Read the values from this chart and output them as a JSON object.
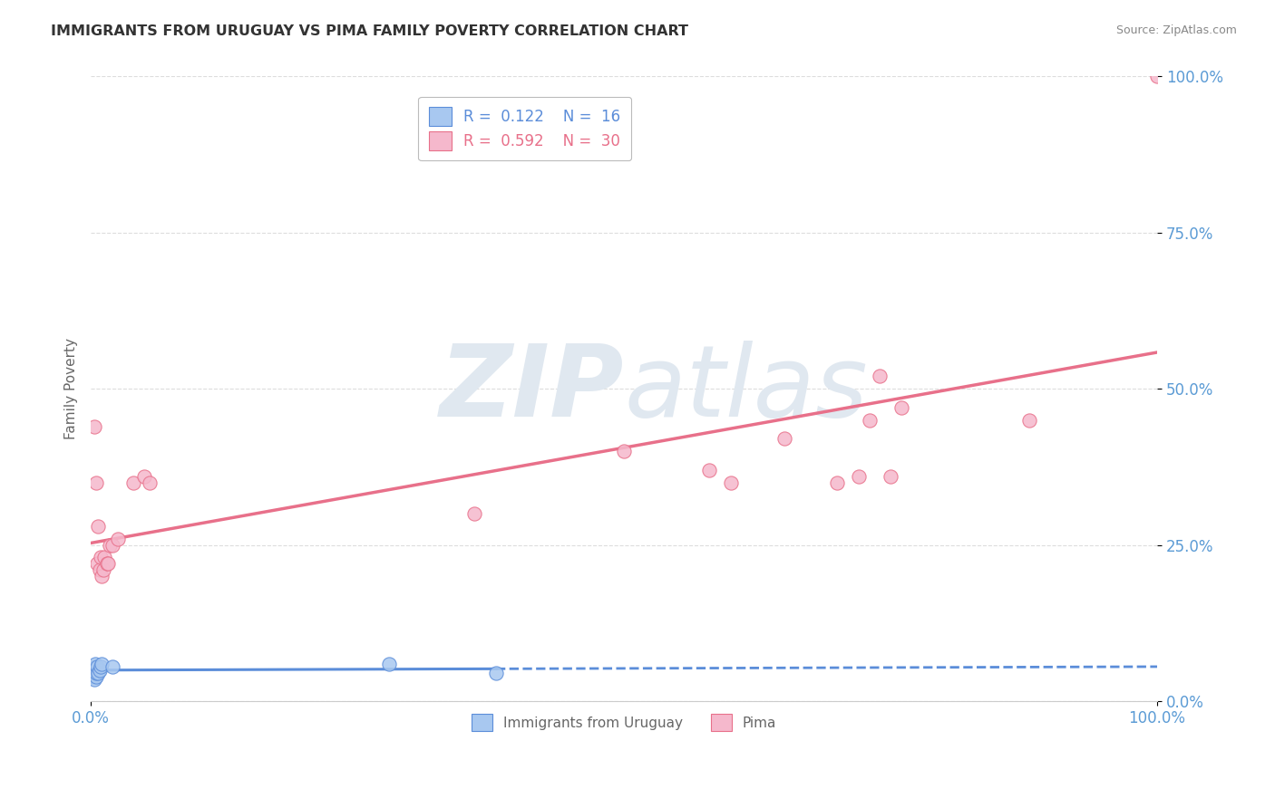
{
  "title": "IMMIGRANTS FROM URUGUAY VS PIMA FAMILY POVERTY CORRELATION CHART",
  "source_text": "Source: ZipAtlas.com",
  "ylabel": "Family Poverty",
  "watermark_zip": "ZIP",
  "watermark_atlas": "atlas",
  "xlim": [
    0,
    1.0
  ],
  "ylim": [
    0,
    1.0
  ],
  "ytick_values": [
    0.0,
    0.25,
    0.5,
    0.75,
    1.0
  ],
  "ytick_labels": [
    "0.0%",
    "25.0%",
    "50.0%",
    "75.0%",
    "100.0%"
  ],
  "legend_R1": "0.122",
  "legend_N1": "16",
  "legend_R2": "0.592",
  "legend_N2": "30",
  "blue_fill": "#A8C8F0",
  "pink_fill": "#F5B8CC",
  "blue_edge": "#5B8DD9",
  "pink_edge": "#E8708A",
  "blue_line": "#5B8DD9",
  "pink_line": "#E8708A",
  "background_color": "#FFFFFF",
  "grid_color": "#DDDDDD",
  "title_color": "#333333",
  "axis_label_color": "#666666",
  "tick_color": "#5B9BD5",
  "uruguay_points": [
    [
      0.002,
      0.05
    ],
    [
      0.002,
      0.04
    ],
    [
      0.003,
      0.05
    ],
    [
      0.003,
      0.035
    ],
    [
      0.004,
      0.055
    ],
    [
      0.004,
      0.06
    ],
    [
      0.005,
      0.04
    ],
    [
      0.005,
      0.045
    ],
    [
      0.006,
      0.055
    ],
    [
      0.007,
      0.045
    ],
    [
      0.008,
      0.05
    ],
    [
      0.009,
      0.055
    ],
    [
      0.01,
      0.06
    ],
    [
      0.02,
      0.055
    ],
    [
      0.28,
      0.06
    ],
    [
      0.38,
      0.045
    ]
  ],
  "pima_points": [
    [
      0.003,
      0.44
    ],
    [
      0.005,
      0.35
    ],
    [
      0.006,
      0.22
    ],
    [
      0.007,
      0.28
    ],
    [
      0.008,
      0.21
    ],
    [
      0.009,
      0.23
    ],
    [
      0.01,
      0.2
    ],
    [
      0.012,
      0.21
    ],
    [
      0.013,
      0.23
    ],
    [
      0.015,
      0.22
    ],
    [
      0.016,
      0.22
    ],
    [
      0.018,
      0.25
    ],
    [
      0.02,
      0.25
    ],
    [
      0.025,
      0.26
    ],
    [
      0.04,
      0.35
    ],
    [
      0.05,
      0.36
    ],
    [
      0.055,
      0.35
    ],
    [
      0.36,
      0.3
    ],
    [
      0.5,
      0.4
    ],
    [
      0.58,
      0.37
    ],
    [
      0.6,
      0.35
    ],
    [
      0.65,
      0.42
    ],
    [
      0.7,
      0.35
    ],
    [
      0.72,
      0.36
    ],
    [
      0.73,
      0.45
    ],
    [
      0.74,
      0.52
    ],
    [
      0.75,
      0.36
    ],
    [
      0.76,
      0.47
    ],
    [
      0.88,
      0.45
    ],
    [
      1.0,
      1.0
    ]
  ],
  "trend_x_start": 0.0,
  "trend_x_end": 1.0
}
